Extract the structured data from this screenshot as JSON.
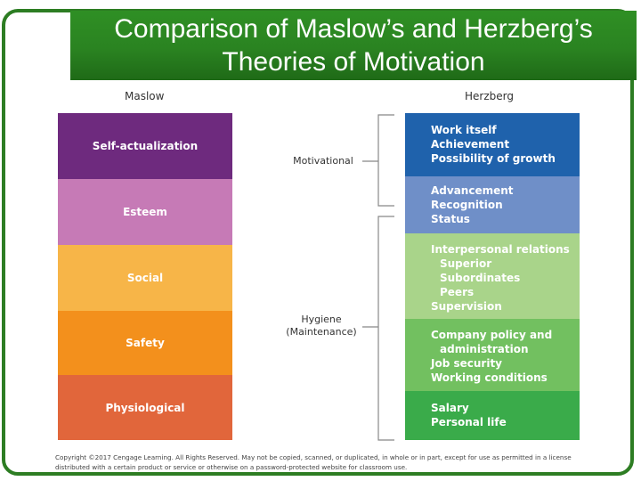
{
  "title": "Comparison of Maslow’s and Herzberg’s\nTheories of Motivation",
  "headers": {
    "maslow": "Maslow",
    "herzberg": "Herzberg"
  },
  "maslow_levels": [
    {
      "label": "Self-actualization",
      "color": "#6e2a7e"
    },
    {
      "label": "Esteem",
      "color": "#c67ab6"
    },
    {
      "label": "Social",
      "color": "#f7b548"
    },
    {
      "label": "Safety",
      "color": "#f3901c"
    },
    {
      "label": "Physiological",
      "color": "#e1663b"
    }
  ],
  "herzberg_groups": [
    {
      "color": "#1f62ac",
      "lines": [
        "Work itself",
        "Achievement",
        "Possibility of growth"
      ]
    },
    {
      "color": "#6f8fc8",
      "lines": [
        "Advancement",
        "Recognition",
        "Status"
      ]
    },
    {
      "color": "#a9d48a",
      "lines": [
        "Interpersonal relations",
        "Superior",
        "Subordinates",
        "Peers",
        "Supervision"
      ]
    },
    {
      "color": "#72c060",
      "lines": [
        "Company policy and",
        "administration",
        "Job security",
        "Working conditions"
      ]
    },
    {
      "color": "#3aab4a",
      "lines": [
        "Salary",
        "Personal life"
      ]
    }
  ],
  "brackets": {
    "motivational": "Motivational",
    "hygiene": "Hygiene\n(Maintenance)"
  },
  "copyright": "Copyright ©2017 Cengage Learning. All Rights Reserved. May not be copied, scanned, or duplicated, in whole or in part, except for use as permitted in a license distributed with a certain product or service or otherwise on a password-protected website for classroom use."
}
